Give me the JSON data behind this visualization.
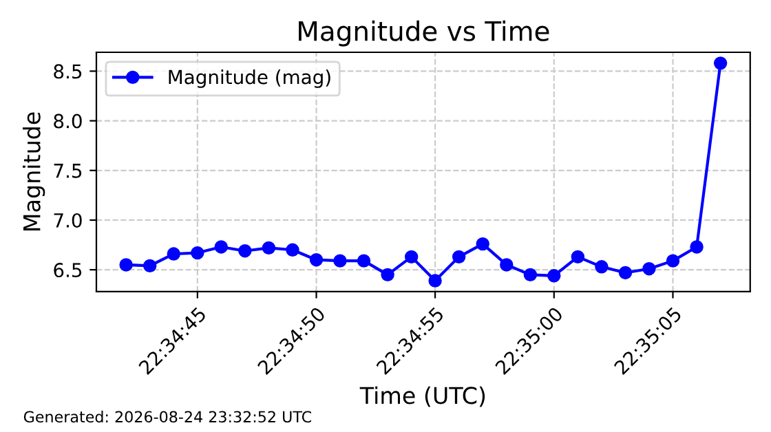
{
  "chart_data": {
    "type": "line",
    "title": "Magnitude vs Time",
    "xlabel": "Time (UTC)",
    "ylabel": "Magnitude",
    "x": [
      22.578333,
      22.578611,
      22.578889,
      22.579167,
      22.579444,
      22.579722,
      22.58,
      22.580278,
      22.580556,
      22.580833,
      22.581111,
      22.581389,
      22.581667,
      22.581944,
      22.582222,
      22.5825,
      22.582778,
      22.583056,
      22.583333,
      22.583611,
      22.583889,
      22.584167,
      22.584444,
      22.584722,
      22.585,
      22.585278
    ],
    "series": [
      {
        "name": "Magnitude (mag)",
        "color": "#0000ff",
        "values": [
          6.55,
          6.54,
          6.66,
          6.67,
          6.73,
          6.69,
          6.72,
          6.7,
          6.6,
          6.59,
          6.59,
          6.45,
          6.63,
          6.39,
          6.63,
          6.76,
          6.55,
          6.45,
          6.44,
          6.63,
          6.53,
          6.47,
          6.51,
          6.59,
          6.73,
          8.58
        ]
      }
    ],
    "xlim": [
      22.577986,
      22.585625
    ],
    "xticks": [
      {
        "value": 22.579167,
        "label": "22:34:45"
      },
      {
        "value": 22.580556,
        "label": "22:34:50"
      },
      {
        "value": 22.581944,
        "label": "22:34:55"
      },
      {
        "value": 22.583333,
        "label": "22:35:00"
      },
      {
        "value": 22.584722,
        "label": "22:35:05"
      }
    ],
    "ylim": [
      6.28,
      8.69
    ],
    "yticks": [
      6.5,
      {
        "value": 7,
        "label": "7.0"
      },
      7.5,
      {
        "value": 8,
        "label": "8.0"
      },
      8.5
    ],
    "grid": true,
    "legend": "top left",
    "marker": "circle",
    "line_style": "solid",
    "annotations": [
      "Generated: 2026-08-24 23:32:52 UTC"
    ]
  }
}
